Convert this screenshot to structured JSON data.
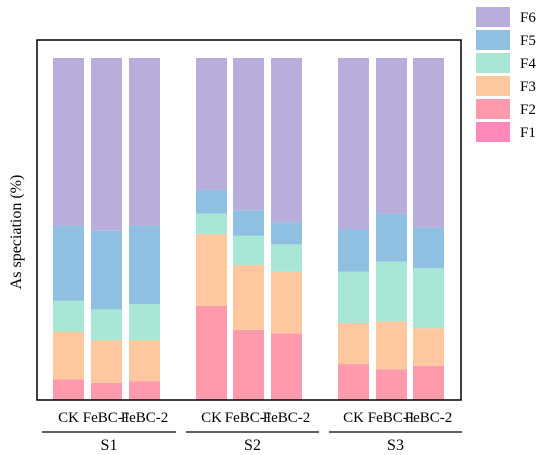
{
  "chart_data": {
    "type": "bar",
    "stacked": true,
    "percent": true,
    "title": "",
    "xlabel": "",
    "ylabel": "As speciation (%)",
    "ylim": [
      0,
      100
    ],
    "y_tick_labels_shown": false,
    "categories": [
      "CK",
      "FeBC-1",
      "FeBC-2",
      "CK",
      "FeBC-1",
      "FeBC-2",
      "CK",
      "FeBC-1",
      "FeBC-2"
    ],
    "groups": [
      {
        "name": "S1",
        "members": [
          0,
          1,
          2
        ]
      },
      {
        "name": "S2",
        "members": [
          3,
          4,
          5
        ]
      },
      {
        "name": "S3",
        "members": [
          6,
          7,
          8
        ]
      }
    ],
    "legend_position": "top-right, outside plot",
    "series": [
      {
        "name": "F1",
        "color": "#ff88bb",
        "values": [
          0,
          0,
          0,
          0.5,
          0,
          0,
          0,
          0,
          0
        ]
      },
      {
        "name": "F2",
        "color": "#ff9aac",
        "values": [
          6,
          5,
          5.5,
          27,
          20.5,
          19.5,
          10.5,
          9,
          10
        ]
      },
      {
        "name": "F3",
        "color": "#fdc8a0",
        "values": [
          14,
          12.5,
          12,
          21,
          19,
          18,
          12,
          14,
          11
        ]
      },
      {
        "name": "F4",
        "color": "#a8e6d5",
        "values": [
          9,
          9,
          10.5,
          6,
          8.5,
          8,
          15,
          17.5,
          17.5
        ]
      },
      {
        "name": "F5",
        "color": "#8fc0e1",
        "values": [
          22,
          23,
          23,
          7,
          7.5,
          6.5,
          12.5,
          14,
          12
        ]
      },
      {
        "name": "F6",
        "color": "#b9aedb",
        "values": [
          49,
          50.5,
          49,
          38.5,
          44.5,
          48,
          50,
          45.5,
          49.5
        ]
      }
    ]
  }
}
